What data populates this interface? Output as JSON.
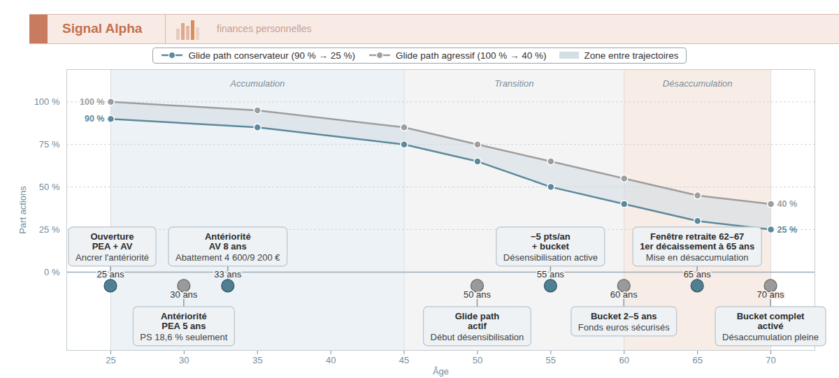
{
  "header": {
    "title": "Signal Alpha",
    "subtitle": "finances personnelles"
  },
  "chart_data": {
    "type": "line",
    "x_label": "Âge",
    "y_label": "Part actions",
    "xlim": [
      22,
      73
    ],
    "xticks": [
      25,
      30,
      35,
      40,
      45,
      50,
      55,
      60,
      65,
      70
    ],
    "ylim": [
      -46,
      119
    ],
    "yticks": [
      {
        "value": 0,
        "label": "0 %"
      },
      {
        "value": 25,
        "label": "25 %"
      },
      {
        "value": 50,
        "label": "50 %"
      },
      {
        "value": 75,
        "label": "75 %"
      },
      {
        "value": 100,
        "label": "100 %"
      }
    ],
    "grid": true,
    "legend": "top",
    "marker": "circle",
    "x": [
      25,
      35,
      45,
      50,
      55,
      60,
      65,
      70
    ],
    "series": [
      {
        "name": "Glide path conservateur (90 % → 25 %)",
        "color": "#5b8a9c",
        "values": [
          90,
          85,
          75,
          65,
          50,
          40,
          30,
          25
        ],
        "value_labels": [
          "90 %",
          null,
          null,
          null,
          null,
          null,
          null,
          "25 %"
        ]
      },
      {
        "name": "Glide path agressif (100 % → 40 %)",
        "color": "#9e9e9e",
        "values": [
          100,
          95,
          85,
          75,
          65,
          55,
          45,
          40
        ],
        "value_labels": [
          "100 %",
          null,
          null,
          null,
          null,
          null,
          null,
          "40 %"
        ]
      }
    ],
    "band": {
      "name": "Zone entre trajectoires",
      "color": "#d3dee5"
    },
    "phases": [
      {
        "label": "Accumulation",
        "start": 25,
        "end": 45,
        "color": "#edf2f6"
      },
      {
        "label": "Transition",
        "start": 45,
        "end": 60,
        "color": "#f4f4f4"
      },
      {
        "label": "Désaccumulation",
        "start": 60,
        "end": 70,
        "color": "#f8ece6"
      }
    ],
    "milestones": [
      {
        "x": 25,
        "label": "25 ans",
        "title": [
          "Ouverture",
          "PEA + AV"
        ],
        "text": "Ancrer l'antériorité",
        "position": "above",
        "color": "#4f7f92"
      },
      {
        "x": 30,
        "label": "30 ans",
        "title": [
          "Antériorité",
          "PEA 5 ans"
        ],
        "text": "PS 18,6 % seulement",
        "position": "below",
        "color": "#9a9a9a"
      },
      {
        "x": 33,
        "label": "33 ans",
        "title": [
          "Antériorité",
          "AV 8 ans"
        ],
        "text": "Abattement 4 600/9 200 €",
        "position": "above",
        "color": "#4f7f92"
      },
      {
        "x": 50,
        "label": "50 ans",
        "title": [
          "Glide path",
          "actif"
        ],
        "text": "Début désensibilisation",
        "position": "below",
        "color": "#9a9a9a"
      },
      {
        "x": 55,
        "label": "55 ans",
        "title": [
          "−5 pts/an",
          "+ bucket"
        ],
        "text": "Désensibilisation active",
        "position": "above",
        "color": "#4f7f92"
      },
      {
        "x": 60,
        "label": "60 ans",
        "title": [
          "Bucket 2–5 ans"
        ],
        "text": "Fonds euros sécurisés",
        "position": "below",
        "color": "#9a9a9a"
      },
      {
        "x": 65,
        "label": "65 ans",
        "title": [
          "Fenêtre retraite 62–67",
          "1er décaissement à 65 ans"
        ],
        "text": "Mise en désaccumulation",
        "position": "above",
        "color": "#4f7f92"
      },
      {
        "x": 70,
        "label": "70 ans",
        "title": [
          "Bucket complet",
          "activé"
        ],
        "text": "Désaccumulation pleine",
        "position": "below",
        "color": "#9a9a9a"
      }
    ]
  }
}
